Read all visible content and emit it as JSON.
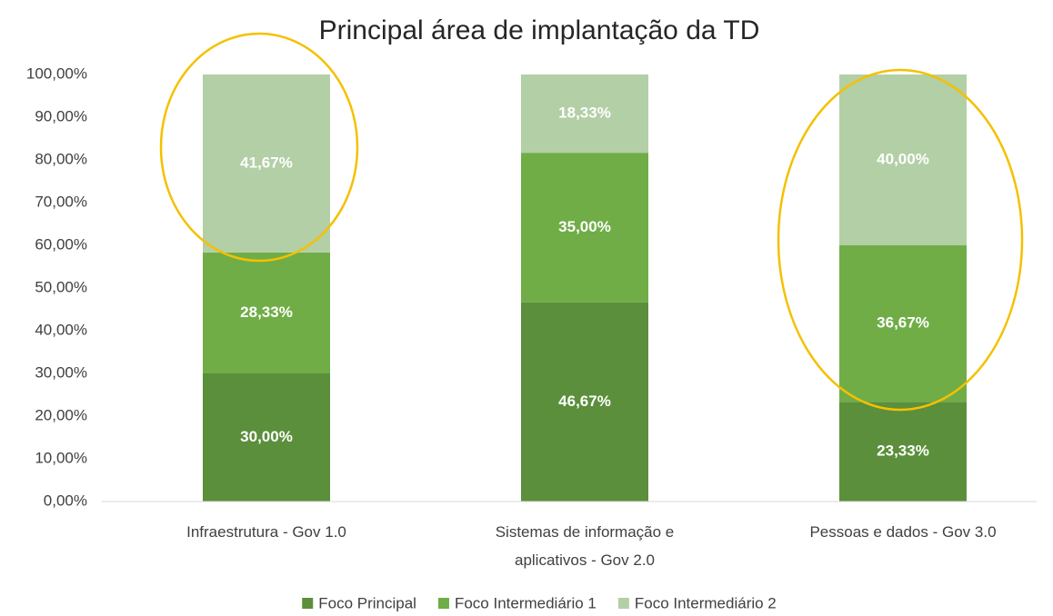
{
  "chart_data": {
    "type": "stacked_bar",
    "title": "Principal área de implantação da TD",
    "categories": [
      "Infraestrutura - Gov 1.0",
      "Sistemas de informação e aplicativos - Gov 2.0",
      "Pessoas e dados - Gov 3.0"
    ],
    "series": [
      {
        "name": "Foco Principal",
        "color": "#5b8f3b",
        "values": [
          30,
          46.67,
          23.33
        ],
        "value_labels": [
          "30,00%",
          "46,67%",
          "23,33%"
        ]
      },
      {
        "name": "Foco Intermediário 1",
        "color": "#70ad47",
        "values": [
          28.33,
          35,
          36.67
        ],
        "value_labels": [
          "28,33%",
          "35,00%",
          "36,67%"
        ]
      },
      {
        "name": "Foco Intermediário 2",
        "color": "#b3cfa6",
        "values": [
          41.67,
          18.33,
          40
        ],
        "value_labels": [
          "41,67%",
          "18,33%",
          "40,00%"
        ]
      }
    ],
    "ylim": [
      0,
      100
    ],
    "yticks": [
      {
        "value": 0,
        "label": "0,00%"
      },
      {
        "value": 10,
        "label": "10,00%"
      },
      {
        "value": 20,
        "label": "20,00%"
      },
      {
        "value": 30,
        "label": "30,00%"
      },
      {
        "value": 40,
        "label": "40,00%"
      },
      {
        "value": 50,
        "label": "50,00%"
      },
      {
        "value": 60,
        "label": "60,00%"
      },
      {
        "value": 70,
        "label": "70,00%"
      },
      {
        "value": 80,
        "label": "80,00%"
      },
      {
        "value": 90,
        "label": "90,00%"
      },
      {
        "value": 100,
        "label": "100,00%"
      }
    ],
    "grid": false,
    "legend": "bottom"
  }
}
